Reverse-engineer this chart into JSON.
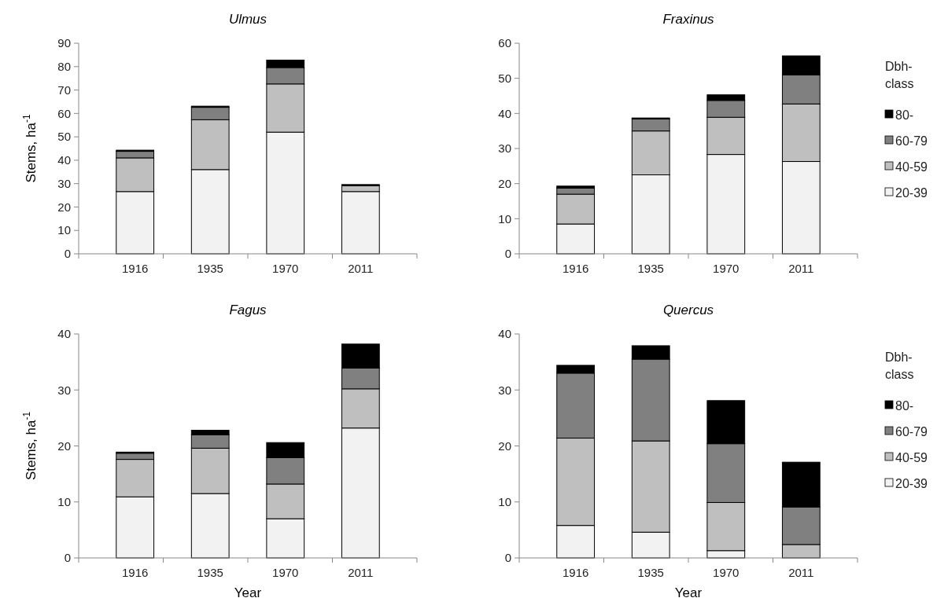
{
  "chart_data": [
    {
      "type": "bar",
      "title": "Ulmus",
      "ylabel": "Stems, ha$^{-1}$",
      "categories": [
        "1916",
        "1935",
        "1970",
        "2011"
      ],
      "stacked": true,
      "ylim": [
        0,
        90
      ],
      "yticks": [
        0,
        10,
        20,
        30,
        40,
        50,
        60,
        70,
        80,
        90
      ],
      "legend": false,
      "series": [
        {
          "color": "#f2f2f2",
          "values": [
            26.6,
            36,
            52,
            26.6
          ]
        },
        {
          "color": "#bfbfbf",
          "values": [
            14.4,
            21.3,
            20.6,
            2.5
          ]
        },
        {
          "color": "#808080",
          "values": [
            2.8,
            5.3,
            7,
            null
          ]
        },
        {
          "color": "#000000",
          "values": [
            0.5,
            0.5,
            3.2,
            0.5
          ]
        }
      ]
    },
    {
      "type": "bar",
      "title": "Fraxinus",
      "legend_title": "Dbh-class",
      "categories": [
        "1916",
        "1935",
        "1970",
        "2011"
      ],
      "stacked": true,
      "ylim": [
        0,
        60
      ],
      "yticks": [
        0,
        10,
        20,
        30,
        40,
        50,
        60
      ],
      "legend": "right",
      "series": [
        {
          "name": "20-39",
          "color": "#f2f2f2",
          "values": [
            8.5,
            22.5,
            28.3,
            26.3
          ]
        },
        {
          "name": "40-59",
          "color": "#bfbfbf",
          "values": [
            8.5,
            12.5,
            10.6,
            16.4
          ]
        },
        {
          "name": "60-79",
          "color": "#808080",
          "values": [
            1.7,
            3.4,
            4.8,
            8.3
          ]
        },
        {
          "name": "80-",
          "color": "#000000",
          "values": [
            0.6,
            0.3,
            1.6,
            5.4
          ]
        }
      ]
    },
    {
      "type": "bar",
      "title": "Fagus",
      "ylabel": "Stems, ha$^{-1}$",
      "xlabel": "Year",
      "categories": [
        "1916",
        "1935",
        "1970",
        "2011"
      ],
      "stacked": true,
      "ylim": [
        0,
        40
      ],
      "yticks": [
        0,
        10,
        20,
        30,
        40
      ],
      "legend": false,
      "series": [
        {
          "color": "#f2f2f2",
          "values": [
            10.9,
            11.5,
            7.0,
            23.2
          ]
        },
        {
          "color": "#bfbfbf",
          "values": [
            6.7,
            8.1,
            6.2,
            7.0
          ]
        },
        {
          "color": "#808080",
          "values": [
            1.1,
            2.4,
            4.7,
            3.7
          ]
        },
        {
          "color": "#000000",
          "values": [
            0.2,
            0.8,
            2.7,
            4.3
          ]
        }
      ]
    },
    {
      "type": "bar",
      "title": "Quercus",
      "xlabel": "Year",
      "legend_title": "Dbh-class",
      "categories": [
        "1916",
        "1935",
        "1970",
        "2011"
      ],
      "stacked": true,
      "ylim": [
        0,
        40
      ],
      "yticks": [
        0,
        10,
        20,
        30,
        40
      ],
      "legend": "right",
      "series": [
        {
          "name": "20-39",
          "color": "#f2f2f2",
          "values": [
            5.8,
            4.6,
            1.3,
            null
          ]
        },
        {
          "name": "40-59",
          "color": "#bfbfbf",
          "values": [
            15.6,
            16.3,
            8.6,
            2.4
          ]
        },
        {
          "name": "60-79",
          "color": "#808080",
          "values": [
            11.6,
            14.6,
            10.5,
            6.7
          ]
        },
        {
          "name": "80-",
          "color": "#000000",
          "values": [
            1.4,
            2.4,
            7.7,
            8.0
          ]
        }
      ]
    }
  ]
}
